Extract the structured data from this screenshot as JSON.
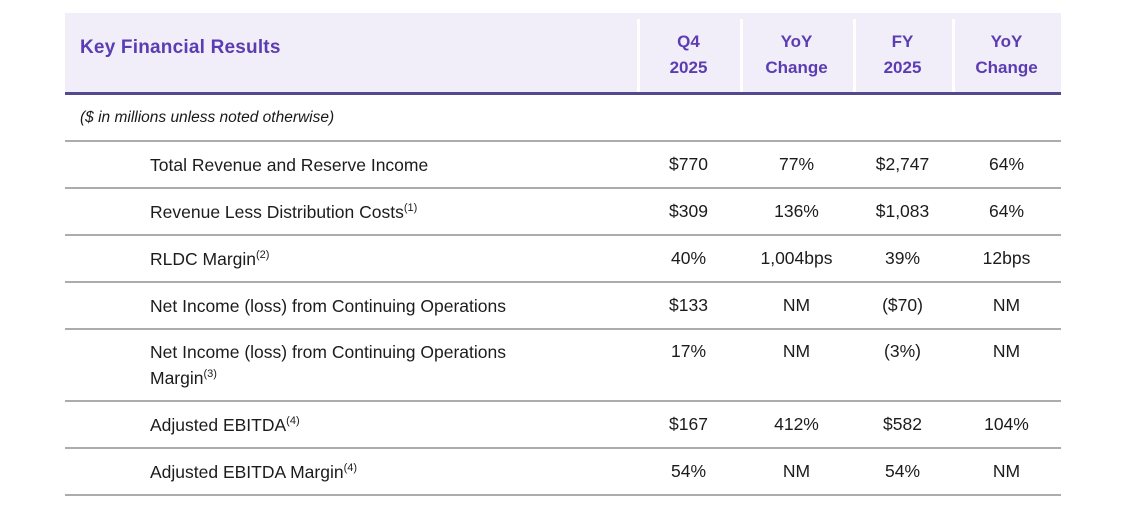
{
  "table": {
    "title": "Key Financial Results",
    "note": "($ in millions unless noted otherwise)",
    "columns": [
      {
        "line1": "Q4",
        "line2": "2025"
      },
      {
        "line1": "YoY",
        "line2": "Change"
      },
      {
        "line1": "FY",
        "line2": "2025"
      },
      {
        "line1": "YoY",
        "line2": "Change"
      }
    ],
    "rows": [
      {
        "label": "Total Revenue and Reserve Income",
        "footnote": "",
        "tall": false,
        "values": [
          "$770",
          "77%",
          "$2,747",
          "64%"
        ]
      },
      {
        "label": "Revenue Less Distribution Costs",
        "footnote": "(1)",
        "tall": false,
        "values": [
          "$309",
          "136%",
          "$1,083",
          "64%"
        ]
      },
      {
        "label": "RLDC Margin",
        "footnote": "(2)",
        "tall": false,
        "values": [
          "40%",
          "1,004bps",
          "39%",
          "12bps"
        ]
      },
      {
        "label": "Net Income (loss) from Continuing Operations",
        "footnote": "",
        "tall": false,
        "values": [
          "$133",
          "NM",
          "($70)",
          "NM"
        ]
      },
      {
        "label": "Net Income (loss) from Continuing Operations Margin",
        "footnote": "(3)",
        "tall": true,
        "values": [
          "17%",
          "NM",
          "(3%)",
          "NM"
        ]
      },
      {
        "label": "Adjusted EBITDA",
        "footnote": "(4)",
        "tall": false,
        "values": [
          "$167",
          "412%",
          "$582",
          "104%"
        ]
      },
      {
        "label": "Adjusted EBITDA Margin",
        "footnote": "(4)",
        "tall": false,
        "values": [
          "54%",
          "NM",
          "54%",
          "NM"
        ]
      }
    ],
    "colors": {
      "header_bg": "#F1EDF9",
      "header_text": "#5C3DB1",
      "header_border": "#534A8E",
      "row_line": "#ACACAC",
      "body_text": "#1C1C1C"
    }
  }
}
